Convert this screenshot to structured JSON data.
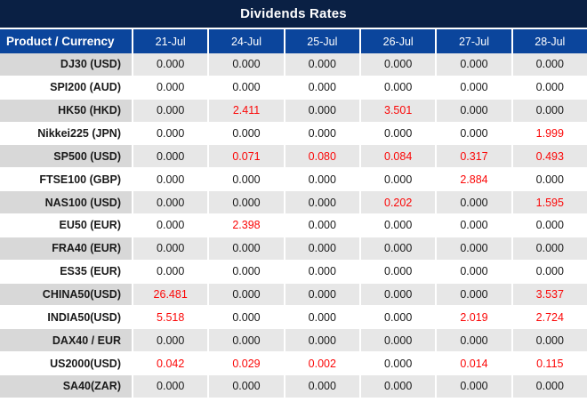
{
  "title": "Dividends Rates",
  "table": {
    "header_label": "Product / Currency",
    "columns": [
      "21-Jul",
      "24-Jul",
      "25-Jul",
      "26-Jul",
      "27-Jul",
      "28-Jul"
    ],
    "rows": [
      {
        "label": "DJ30 (USD)",
        "values": [
          "0.000",
          "0.000",
          "0.000",
          "0.000",
          "0.000",
          "0.000"
        ],
        "red": [
          false,
          false,
          false,
          false,
          false,
          false
        ]
      },
      {
        "label": "SPI200 (AUD)",
        "values": [
          "0.000",
          "0.000",
          "0.000",
          "0.000",
          "0.000",
          "0.000"
        ],
        "red": [
          false,
          false,
          false,
          false,
          false,
          false
        ]
      },
      {
        "label": "HK50 (HKD)",
        "values": [
          "0.000",
          "2.411",
          "0.000",
          "3.501",
          "0.000",
          "0.000"
        ],
        "red": [
          false,
          true,
          false,
          true,
          false,
          false
        ]
      },
      {
        "label": "Nikkei225 (JPN)",
        "values": [
          "0.000",
          "0.000",
          "0.000",
          "0.000",
          "0.000",
          "1.999"
        ],
        "red": [
          false,
          false,
          false,
          false,
          false,
          true
        ]
      },
      {
        "label": "SP500 (USD)",
        "values": [
          "0.000",
          "0.071",
          "0.080",
          "0.084",
          "0.317",
          "0.493"
        ],
        "red": [
          false,
          true,
          true,
          true,
          true,
          true
        ]
      },
      {
        "label": "FTSE100 (GBP)",
        "values": [
          "0.000",
          "0.000",
          "0.000",
          "0.000",
          "2.884",
          "0.000"
        ],
        "red": [
          false,
          false,
          false,
          false,
          true,
          false
        ]
      },
      {
        "label": "NAS100 (USD)",
        "values": [
          "0.000",
          "0.000",
          "0.000",
          "0.202",
          "0.000",
          "1.595"
        ],
        "red": [
          false,
          false,
          false,
          true,
          false,
          true
        ]
      },
      {
        "label": "EU50 (EUR)",
        "values": [
          "0.000",
          "2.398",
          "0.000",
          "0.000",
          "0.000",
          "0.000"
        ],
        "red": [
          false,
          true,
          false,
          false,
          false,
          false
        ]
      },
      {
        "label": "FRA40 (EUR)",
        "values": [
          "0.000",
          "0.000",
          "0.000",
          "0.000",
          "0.000",
          "0.000"
        ],
        "red": [
          false,
          false,
          false,
          false,
          false,
          false
        ]
      },
      {
        "label": "ES35 (EUR)",
        "values": [
          "0.000",
          "0.000",
          "0.000",
          "0.000",
          "0.000",
          "0.000"
        ],
        "red": [
          false,
          false,
          false,
          false,
          false,
          false
        ]
      },
      {
        "label": "CHINA50(USD)",
        "values": [
          "26.481",
          "0.000",
          "0.000",
          "0.000",
          "0.000",
          "3.537"
        ],
        "red": [
          true,
          false,
          false,
          false,
          false,
          true
        ]
      },
      {
        "label": "INDIA50(USD)",
        "values": [
          "5.518",
          "0.000",
          "0.000",
          "0.000",
          "2.019",
          "2.724"
        ],
        "red": [
          true,
          false,
          false,
          false,
          true,
          true
        ]
      },
      {
        "label": "DAX40 / EUR",
        "values": [
          "0.000",
          "0.000",
          "0.000",
          "0.000",
          "0.000",
          "0.000"
        ],
        "red": [
          false,
          false,
          false,
          false,
          false,
          false
        ]
      },
      {
        "label": "US2000(USD)",
        "values": [
          "0.042",
          "0.029",
          "0.002",
          "0.000",
          "0.014",
          "0.115"
        ],
        "red": [
          true,
          true,
          true,
          false,
          true,
          true
        ]
      },
      {
        "label": "SA40(ZAR)",
        "values": [
          "0.000",
          "0.000",
          "0.000",
          "0.000",
          "0.000",
          "0.000"
        ],
        "red": [
          false,
          false,
          false,
          false,
          false,
          false
        ]
      }
    ]
  },
  "colors": {
    "title_bar_bg": "#0A2044",
    "header_bg": "#0B459C",
    "band_label_gray": "#D8D8D8",
    "band_cell_gray": "#E7E7E7",
    "value_black": "#1A1A1A",
    "value_red": "#FB0707",
    "grid_line": "#FFFFFF"
  }
}
